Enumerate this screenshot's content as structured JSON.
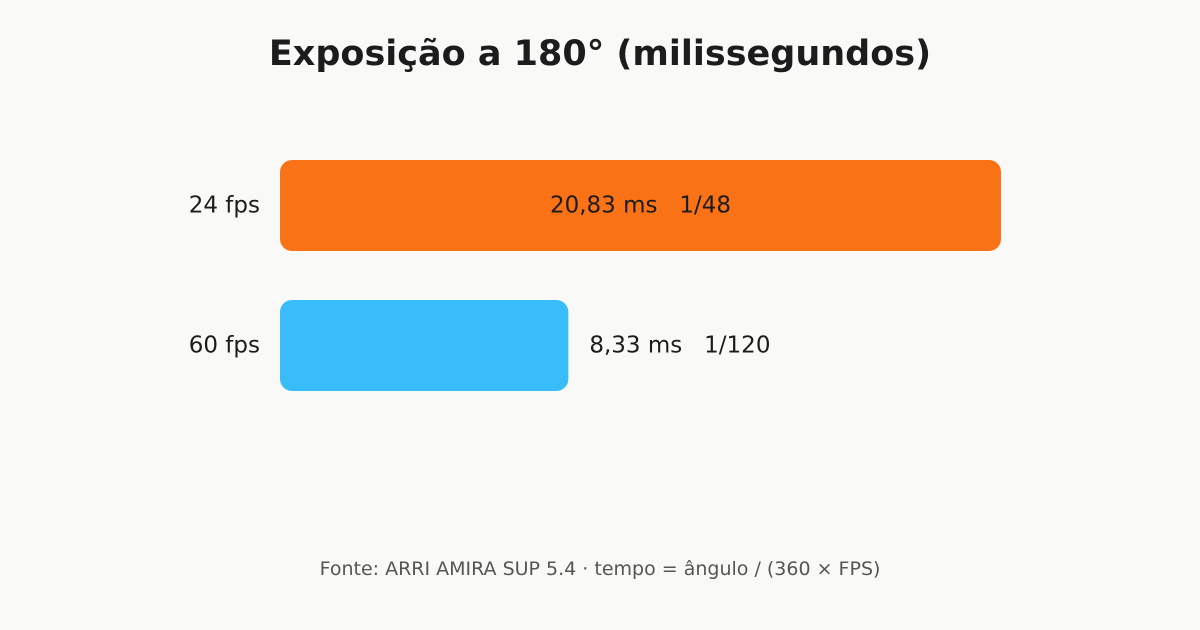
{
  "chart_data": {
    "type": "bar",
    "orientation": "horizontal",
    "title": "Exposição a 180° (milissegundos)",
    "categories": [
      "24 fps",
      "60 fps"
    ],
    "values": [
      20.83,
      8.33
    ],
    "value_labels": [
      "20,83 ms",
      "8,33 ms"
    ],
    "fraction_labels": [
      "1/48",
      "1/120"
    ],
    "colors": [
      "#f97316",
      "#38bdf8"
    ],
    "xlim": [
      0,
      20.83
    ],
    "grid": false,
    "legend": "none"
  },
  "footer": {
    "source": "Fonte: ARRI AMIRA SUP 5.4  ·  tempo = ângulo / (360 × FPS)"
  }
}
